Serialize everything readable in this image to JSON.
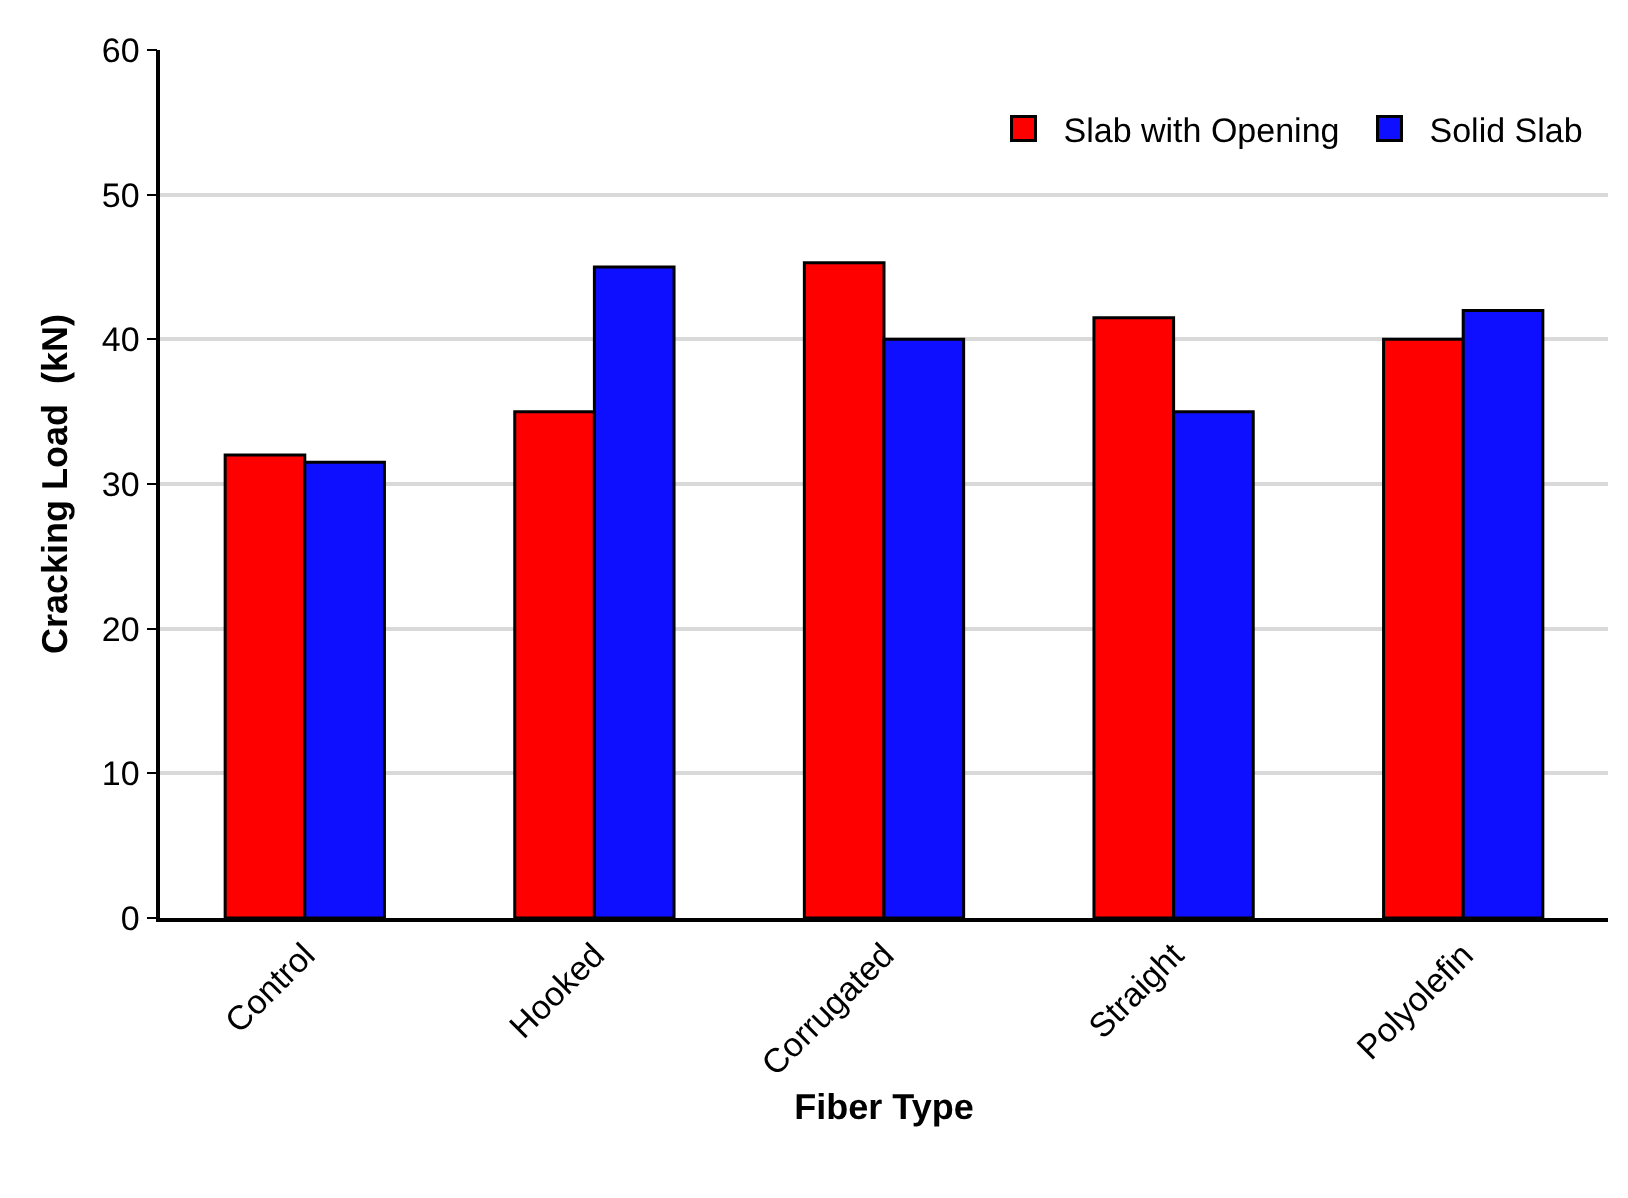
{
  "chart_data": {
    "type": "bar",
    "xlabel": "Fiber Type",
    "ylabel": "Cracking Load  (kN)",
    "categories": [
      "Control",
      "Hooked",
      "Corrugated",
      "Straight",
      "Polyolefin"
    ],
    "series": [
      {
        "name": "Slab with Opening",
        "color": "#ff0000",
        "values": [
          32,
          35,
          45.3,
          41.5,
          40
        ]
      },
      {
        "name": "Solid Slab",
        "color": "#0f0fff",
        "values": [
          31.5,
          45,
          40,
          35,
          42
        ]
      }
    ],
    "ylim": [
      0,
      60
    ],
    "yticks": [
      0,
      10,
      20,
      30,
      40,
      50,
      60
    ],
    "grid": "y",
    "legend": "top right"
  }
}
